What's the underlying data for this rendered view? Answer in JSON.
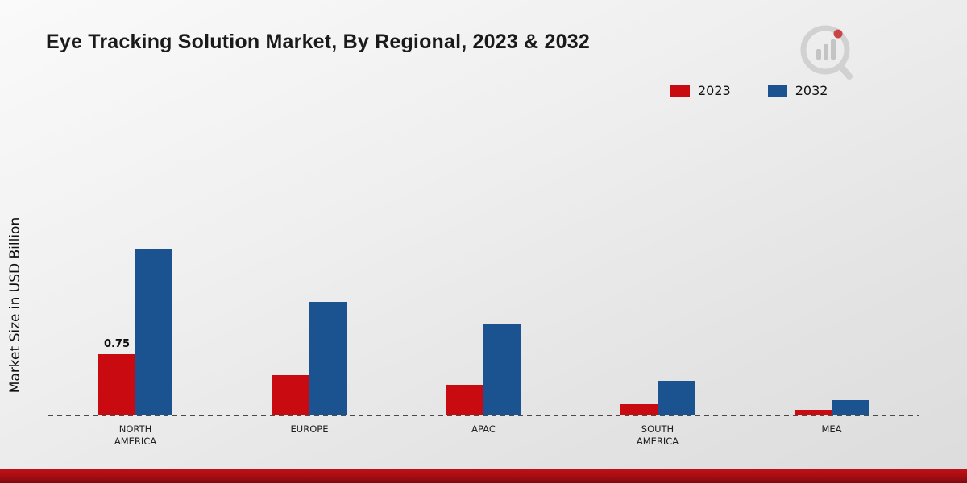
{
  "header": {
    "title": "Eye Tracking Solution Market, By Regional, 2023 & 2032"
  },
  "chart_data": {
    "type": "bar",
    "title": "Eye Tracking Solution Market, By Regional, 2023 & 2032",
    "ylabel": "Market Size in USD Billion",
    "xlabel": "",
    "categories": [
      "NORTH AMERICA",
      "EUROPE",
      "APAC",
      "SOUTH AMERICA",
      "MEA"
    ],
    "series": [
      {
        "name": "2023",
        "color": "#c90a11",
        "values": [
          0.75,
          0.5,
          0.38,
          0.14,
          0.07
        ]
      },
      {
        "name": "2032",
        "color": "#1a538f",
        "values": [
          2.05,
          1.4,
          1.12,
          0.43,
          0.19
        ]
      }
    ],
    "annotations": [
      {
        "series": "2023",
        "category": "NORTH AMERICA",
        "text": "0.75"
      }
    ],
    "ylim": [
      0,
      2.2
    ],
    "grid": false,
    "baseline_style": "dashed",
    "legend_position": "top-right"
  },
  "colors": {
    "series_2023": "#c90a11",
    "series_2032": "#1a538f",
    "footer_bar": "#a50d12",
    "background_top": "#fafafa",
    "background_bottom": "#dcdcdc",
    "baseline": "#4a4a4a"
  },
  "icons": {
    "brand_logo": "bar-chart-magnifier-icon"
  }
}
